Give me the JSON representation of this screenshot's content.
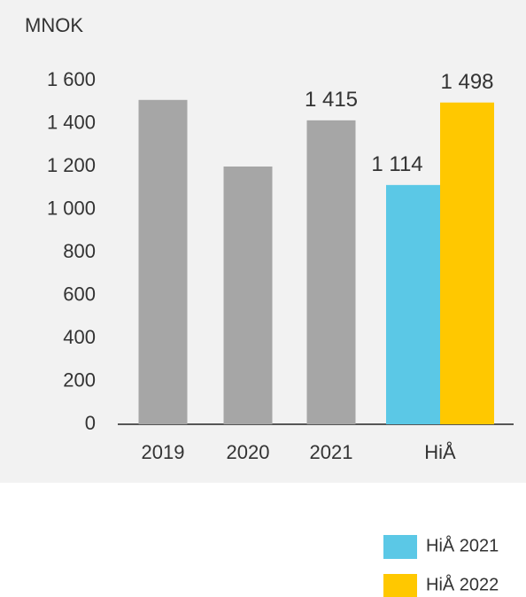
{
  "chart_data": {
    "type": "bar",
    "y_label": "MNOK",
    "categories": [
      "2019",
      "2020",
      "2021",
      "HiÅ"
    ],
    "series": [
      {
        "color": "#a6a6a6",
        "values": [
          1510,
          1200,
          1415,
          null
        ],
        "value_labels": [
          null,
          null,
          "1 415",
          null
        ]
      },
      {
        "name": "HiÅ 2021",
        "color": "#5bc8e6",
        "values": [
          null,
          null,
          null,
          1114
        ],
        "value_labels": [
          null,
          null,
          null,
          "1 114"
        ]
      },
      {
        "name": "HiÅ 2022",
        "color": "#ffc800",
        "values": [
          null,
          null,
          null,
          1498
        ],
        "value_labels": [
          null,
          null,
          null,
          "1 498"
        ]
      }
    ],
    "ylim": [
      0,
      1600
    ],
    "yticks": [
      0,
      200,
      400,
      600,
      800,
      {
        "value": 1000,
        "label": "1 000"
      },
      {
        "value": 1200,
        "label": "1 200"
      },
      {
        "value": 1400,
        "label": "1 400"
      },
      {
        "value": 1600,
        "label": "1 600"
      }
    ],
    "grid": false
  }
}
